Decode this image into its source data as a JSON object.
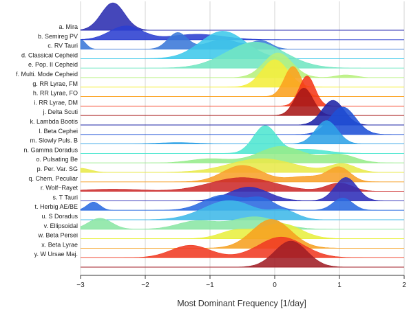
{
  "chart_data": {
    "type": "ridgeline",
    "xlabel": "Most Dominant Frequency [1/day]",
    "xlim": [
      -3,
      2
    ],
    "x_ticks": [
      "−3",
      "−2",
      "−1",
      "0",
      "1",
      "2"
    ],
    "x_tick_values": [
      -3,
      -2,
      -1,
      0,
      1,
      2
    ],
    "grid": "vertical lines at ticks",
    "series": [
      {
        "name": "a. Mira",
        "color": "#2b2db0",
        "peaks": [
          [
            -2.5,
            0.18,
            1.0
          ]
        ]
      },
      {
        "name": "b. Semireg PV",
        "color": "#2b3fd0",
        "peaks": [
          [
            -2.3,
            0.25,
            0.5
          ],
          [
            -1.2,
            0.4,
            0.2
          ]
        ]
      },
      {
        "name": "c. RV Tauri",
        "color": "#3a78d8",
        "peaks": [
          [
            -3.0,
            0.08,
            0.35
          ],
          [
            -1.5,
            0.15,
            0.6
          ],
          [
            -0.8,
            0.25,
            0.35
          ],
          [
            -0.2,
            0.15,
            0.3
          ]
        ]
      },
      {
        "name": "d. Classical Cepheid",
        "color": "#3ec8ea",
        "peaks": [
          [
            -0.8,
            0.35,
            1.0
          ]
        ]
      },
      {
        "name": "e. Pop. II Cepheid",
        "color": "#72e6c2",
        "peaks": [
          [
            -0.3,
            0.45,
            0.95
          ]
        ]
      },
      {
        "name": "f. Multi. Mode Cepheid",
        "color": "#b7f07c",
        "peaks": [
          [
            0.05,
            0.22,
            0.9
          ],
          [
            1.1,
            0.15,
            0.1
          ]
        ]
      },
      {
        "name": "g. RR Lyrae, FM",
        "color": "#f4ee3c",
        "peaks": [
          [
            0.0,
            0.2,
            1.0
          ]
        ]
      },
      {
        "name": "h. RR Lyrae, FO",
        "color": "#fba11e",
        "peaks": [
          [
            0.28,
            0.13,
            1.1
          ]
        ]
      },
      {
        "name": "i. RR Lyrae, DM",
        "color": "#f53818",
        "peaks": [
          [
            0.5,
            0.12,
            1.1
          ]
        ]
      },
      {
        "name": "j. Delta Scuti",
        "color": "#a81818",
        "peaks": [
          [
            0.45,
            0.14,
            1.0
          ]
        ]
      },
      {
        "name": "k. Lambda Bootis",
        "color": "#1e23a6",
        "peaks": [
          [
            0.9,
            0.17,
            0.9
          ]
        ]
      },
      {
        "name": "l. Beta Cephei",
        "color": "#1e50d6",
        "peaks": [
          [
            1.05,
            0.2,
            1.0
          ]
        ]
      },
      {
        "name": "m. Slowly Puls. B",
        "color": "#2fa2e6",
        "peaks": [
          [
            -1.5,
            0.3,
            0.05
          ],
          [
            0.8,
            0.17,
            0.85
          ]
        ]
      },
      {
        "name": "n. Gamma Doradus",
        "color": "#4ee6d0",
        "peaks": [
          [
            -0.15,
            0.18,
            1.0
          ],
          [
            0.5,
            0.3,
            0.15
          ]
        ]
      },
      {
        "name": "o. Pulsating Be",
        "color": "#96ec8a",
        "peaks": [
          [
            -1.0,
            0.3,
            0.15
          ],
          [
            0.1,
            0.35,
            0.6
          ],
          [
            1.0,
            0.25,
            0.3
          ]
        ]
      },
      {
        "name": "p. Per. Var. SG",
        "color": "#e8e94a",
        "peaks": [
          [
            -3.0,
            0.15,
            0.15
          ],
          [
            -0.2,
            0.5,
            0.5
          ],
          [
            1.05,
            0.2,
            0.3
          ]
        ]
      },
      {
        "name": "q. Chem. Peculiar",
        "color": "#f8a12a",
        "peaks": [
          [
            -0.5,
            0.3,
            0.6
          ],
          [
            0.5,
            0.3,
            0.2
          ],
          [
            1.0,
            0.17,
            0.5
          ]
        ]
      },
      {
        "name": "r. Wolf−Rayet",
        "color": "#cc2a2a",
        "peaks": [
          [
            -2.5,
            0.45,
            0.08
          ],
          [
            -0.5,
            0.5,
            0.5
          ],
          [
            1.0,
            0.2,
            0.3
          ]
        ]
      },
      {
        "name": "s. T Tauri",
        "color": "#2d2db8",
        "peaks": [
          [
            -0.4,
            0.3,
            0.5
          ],
          [
            1.1,
            0.17,
            0.85
          ]
        ]
      },
      {
        "name": "t. Herbig AE/BE",
        "color": "#2a6ae0",
        "peaks": [
          [
            -2.8,
            0.1,
            0.3
          ],
          [
            -0.8,
            0.3,
            0.55
          ],
          [
            -0.2,
            0.2,
            0.4
          ],
          [
            1.05,
            0.15,
            0.45
          ]
        ]
      },
      {
        "name": "u. S Doradus",
        "color": "#3fb8e8",
        "peaks": [
          [
            -0.7,
            0.4,
            0.7
          ],
          [
            0.15,
            0.2,
            0.3
          ]
        ]
      },
      {
        "name": "v. Ellipsoidal",
        "color": "#8ae6a4",
        "peaks": [
          [
            -2.7,
            0.18,
            0.4
          ],
          [
            -1.2,
            0.3,
            0.3
          ],
          [
            -0.3,
            0.35,
            0.45
          ]
        ]
      },
      {
        "name": "w. Beta Persei",
        "color": "#e8ef40",
        "peaks": [
          [
            -0.6,
            0.25,
            0.3
          ],
          [
            0.1,
            0.3,
            0.55
          ]
        ]
      },
      {
        "name": "x. Beta Lyrae",
        "color": "#f6a020",
        "peaks": [
          [
            -0.05,
            0.3,
            1.05
          ]
        ]
      },
      {
        "name": "y. W Ursae Maj.",
        "color": "#f03a22",
        "peaks": [
          [
            -1.3,
            0.3,
            0.45
          ],
          [
            0.1,
            0.35,
            0.75
          ]
        ]
      },
      {
        "name": "",
        "color": "#a01e26",
        "peaks": [
          [
            0.25,
            0.25,
            0.95
          ]
        ]
      }
    ]
  }
}
